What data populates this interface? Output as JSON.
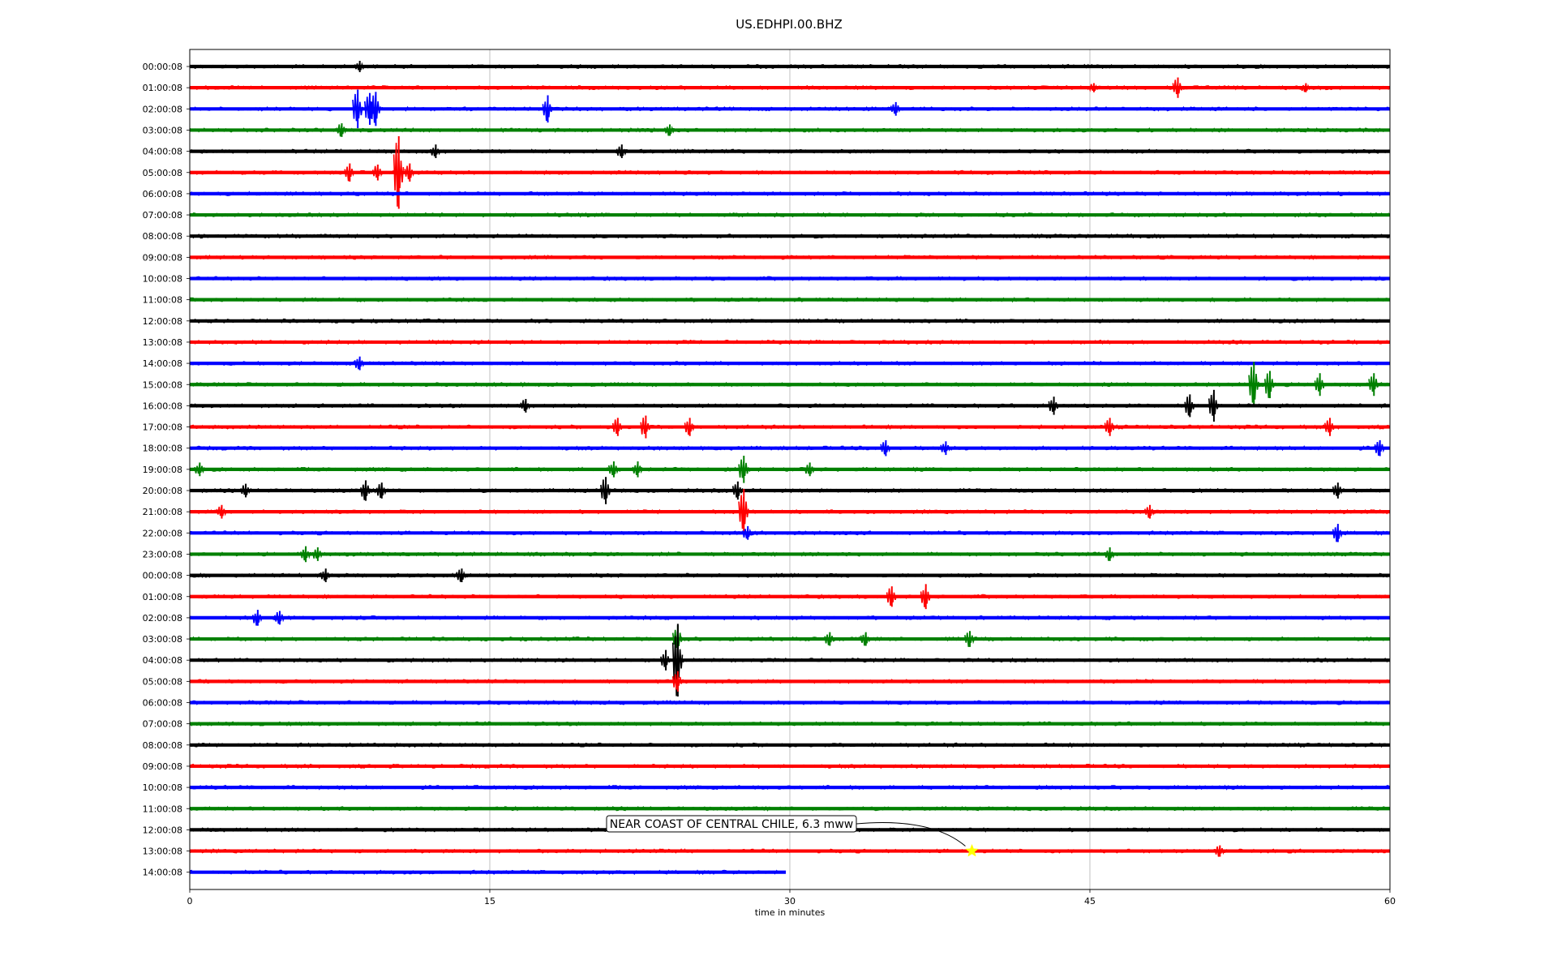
{
  "chart_data": {
    "type": "line",
    "title": "US.EDHPI.00.BHZ",
    "xlabel": "time in minutes",
    "ylabel": "",
    "xlim": [
      0,
      60
    ],
    "x_ticks": [
      0,
      15,
      30,
      45,
      60
    ],
    "x_tick_labels": [
      "0",
      "15",
      "30",
      "45",
      "60"
    ],
    "grid": "vertical lines at x ticks",
    "colors": [
      "#000000",
      "#ff0000",
      "#0000ff",
      "#008000"
    ],
    "rows": [
      {
        "label": "00:00:08",
        "color": "#000000",
        "events": [
          {
            "t": 8.5,
            "amp": 0.25
          }
        ]
      },
      {
        "label": "01:00:08",
        "color": "#ff0000",
        "events": [
          {
            "t": 45.2,
            "amp": 0.2
          },
          {
            "t": 49.4,
            "amp": 0.45
          },
          {
            "t": 55.8,
            "amp": 0.2
          }
        ]
      },
      {
        "label": "02:00:08",
        "color": "#0000ff",
        "events": [
          {
            "t": 8.4,
            "amp": 0.85
          },
          {
            "t": 9.0,
            "amp": 0.7
          },
          {
            "t": 9.3,
            "amp": 0.75
          },
          {
            "t": 17.9,
            "amp": 0.6
          },
          {
            "t": 35.3,
            "amp": 0.3
          }
        ]
      },
      {
        "label": "03:00:08",
        "color": "#008000",
        "events": [
          {
            "t": 7.6,
            "amp": 0.3
          },
          {
            "t": 24.0,
            "amp": 0.25
          }
        ]
      },
      {
        "label": "04:00:08",
        "color": "#000000",
        "events": [
          {
            "t": 12.3,
            "amp": 0.3
          },
          {
            "t": 21.6,
            "amp": 0.3
          }
        ]
      },
      {
        "label": "05:00:08",
        "color": "#ff0000",
        "events": [
          {
            "t": 8.0,
            "amp": 0.4
          },
          {
            "t": 9.4,
            "amp": 0.35
          },
          {
            "t": 10.45,
            "amp": 1.6
          },
          {
            "t": 11.0,
            "amp": 0.4
          }
        ]
      },
      {
        "label": "06:00:08",
        "color": "#0000ff",
        "events": []
      },
      {
        "label": "07:00:08",
        "color": "#008000",
        "events": []
      },
      {
        "label": "08:00:08",
        "color": "#000000",
        "events": []
      },
      {
        "label": "09:00:08",
        "color": "#ff0000",
        "events": []
      },
      {
        "label": "10:00:08",
        "color": "#0000ff",
        "events": []
      },
      {
        "label": "11:00:08",
        "color": "#008000",
        "events": []
      },
      {
        "label": "12:00:08",
        "color": "#000000",
        "events": []
      },
      {
        "label": "13:00:08",
        "color": "#ff0000",
        "events": []
      },
      {
        "label": "14:00:08",
        "color": "#0000ff",
        "events": [
          {
            "t": 8.5,
            "amp": 0.3
          }
        ]
      },
      {
        "label": "15:00:08",
        "color": "#008000",
        "events": [
          {
            "t": 53.2,
            "amp": 1.0
          },
          {
            "t": 54.0,
            "amp": 0.6
          },
          {
            "t": 56.5,
            "amp": 0.5
          },
          {
            "t": 59.2,
            "amp": 0.5
          }
        ]
      },
      {
        "label": "16:00:08",
        "color": "#000000",
        "events": [
          {
            "t": 16.8,
            "amp": 0.3
          },
          {
            "t": 43.2,
            "amp": 0.4
          },
          {
            "t": 50.0,
            "amp": 0.5
          },
          {
            "t": 51.2,
            "amp": 0.7
          }
        ]
      },
      {
        "label": "17:00:08",
        "color": "#ff0000",
        "events": [
          {
            "t": 21.4,
            "amp": 0.4
          },
          {
            "t": 22.8,
            "amp": 0.5
          },
          {
            "t": 25.0,
            "amp": 0.4
          },
          {
            "t": 46.0,
            "amp": 0.4
          },
          {
            "t": 57.0,
            "amp": 0.4
          }
        ]
      },
      {
        "label": "18:00:08",
        "color": "#0000ff",
        "events": [
          {
            "t": 34.8,
            "amp": 0.35
          },
          {
            "t": 37.8,
            "amp": 0.3
          },
          {
            "t": 59.5,
            "amp": 0.35
          }
        ]
      },
      {
        "label": "19:00:08",
        "color": "#008000",
        "events": [
          {
            "t": 0.5,
            "amp": 0.3
          },
          {
            "t": 21.2,
            "amp": 0.35
          },
          {
            "t": 22.4,
            "amp": 0.35
          },
          {
            "t": 27.7,
            "amp": 0.6
          },
          {
            "t": 31.0,
            "amp": 0.3
          }
        ]
      },
      {
        "label": "20:00:08",
        "color": "#000000",
        "events": [
          {
            "t": 2.8,
            "amp": 0.3
          },
          {
            "t": 8.8,
            "amp": 0.45
          },
          {
            "t": 9.6,
            "amp": 0.35
          },
          {
            "t": 20.8,
            "amp": 0.6
          },
          {
            "t": 27.4,
            "amp": 0.4
          },
          {
            "t": 57.4,
            "amp": 0.35
          }
        ]
      },
      {
        "label": "21:00:08",
        "color": "#ff0000",
        "events": [
          {
            "t": 1.6,
            "amp": 0.3
          },
          {
            "t": 27.7,
            "amp": 1.0
          },
          {
            "t": 48.0,
            "amp": 0.3
          }
        ]
      },
      {
        "label": "22:00:08",
        "color": "#0000ff",
        "events": [
          {
            "t": 27.9,
            "amp": 0.3
          },
          {
            "t": 57.4,
            "amp": 0.4
          }
        ]
      },
      {
        "label": "23:00:08",
        "color": "#008000",
        "events": [
          {
            "t": 5.8,
            "amp": 0.35
          },
          {
            "t": 6.4,
            "amp": 0.3
          },
          {
            "t": 46.0,
            "amp": 0.3
          }
        ]
      },
      {
        "label": "00:00:08",
        "color": "#000000",
        "events": [
          {
            "t": 6.8,
            "amp": 0.3
          },
          {
            "t": 13.6,
            "amp": 0.3
          }
        ]
      },
      {
        "label": "01:00:08",
        "color": "#ff0000",
        "events": [
          {
            "t": 35.1,
            "amp": 0.45
          },
          {
            "t": 36.8,
            "amp": 0.55
          }
        ]
      },
      {
        "label": "02:00:08",
        "color": "#0000ff",
        "events": [
          {
            "t": 3.4,
            "amp": 0.35
          },
          {
            "t": 4.5,
            "amp": 0.3
          }
        ]
      },
      {
        "label": "03:00:08",
        "color": "#008000",
        "events": [
          {
            "t": 24.4,
            "amp": 0.6
          },
          {
            "t": 32.0,
            "amp": 0.3
          },
          {
            "t": 33.8,
            "amp": 0.3
          },
          {
            "t": 39.0,
            "amp": 0.35
          }
        ]
      },
      {
        "label": "04:00:08",
        "color": "#000000",
        "events": [
          {
            "t": 23.8,
            "amp": 0.45
          },
          {
            "t": 24.4,
            "amp": 1.6
          }
        ]
      },
      {
        "label": "05:00:08",
        "color": "#ff0000",
        "events": [
          {
            "t": 24.4,
            "amp": 0.45
          }
        ]
      },
      {
        "label": "06:00:08",
        "color": "#0000ff",
        "events": []
      },
      {
        "label": "07:00:08",
        "color": "#008000",
        "events": []
      },
      {
        "label": "08:00:08",
        "color": "#000000",
        "events": []
      },
      {
        "label": "09:00:08",
        "color": "#ff0000",
        "events": []
      },
      {
        "label": "10:00:08",
        "color": "#0000ff",
        "events": []
      },
      {
        "label": "11:00:08",
        "color": "#008000",
        "events": []
      },
      {
        "label": "12:00:08",
        "color": "#000000",
        "events": []
      },
      {
        "label": "13:00:08",
        "color": "#ff0000",
        "events": [
          {
            "t": 51.5,
            "amp": 0.25
          }
        ]
      },
      {
        "label": "14:00:08",
        "color": "#0000ff",
        "events": [],
        "end_t": 29.8
      }
    ],
    "annotations": [
      {
        "text": "NEAR COAST OF CENTRAL CHILE, 6.3 mww",
        "row": 37,
        "t": 39.1,
        "marker": "star",
        "marker_color": "#ffff00"
      }
    ]
  }
}
